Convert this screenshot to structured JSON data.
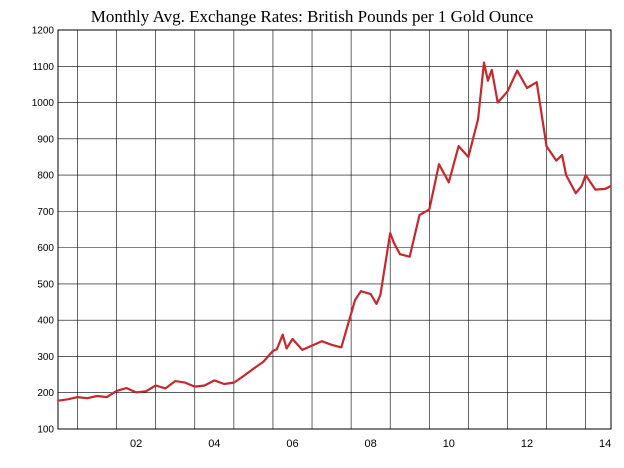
{
  "chart_data": {
    "type": "line",
    "title": "Monthly Avg. Exchange Rates: British Pounds per 1 Gold Ounce",
    "xlabel": "",
    "ylabel": "",
    "ylim": [
      100,
      1200
    ],
    "yticks": [
      100,
      200,
      300,
      400,
      500,
      600,
      700,
      800,
      900,
      1000,
      1100,
      1200
    ],
    "xlim": [
      2000.5,
      2014.65
    ],
    "xticks": [
      {
        "label": "02",
        "x": 2002.0
      },
      {
        "label": "04",
        "x": 2004.0
      },
      {
        "label": "06",
        "x": 2006.0
      },
      {
        "label": "08",
        "x": 2008.0
      },
      {
        "label": "10",
        "x": 2010.0
      },
      {
        "label": "12",
        "x": 2012.0
      },
      {
        "label": "14",
        "x": 2014.0
      }
    ],
    "grid": true,
    "line_color": "#c8282d",
    "series": [
      {
        "name": "",
        "x": [
          2000.5,
          2000.75,
          2001.0,
          2001.25,
          2001.5,
          2001.75,
          2002.0,
          2002.25,
          2002.5,
          2002.75,
          2003.0,
          2003.25,
          2003.5,
          2003.75,
          2004.0,
          2004.25,
          2004.5,
          2004.75,
          2005.0,
          2005.25,
          2005.5,
          2005.75,
          2006.0,
          2006.1,
          2006.25,
          2006.35,
          2006.5,
          2006.75,
          2007.0,
          2007.25,
          2007.5,
          2007.75,
          2008.0,
          2008.1,
          2008.25,
          2008.5,
          2008.65,
          2008.75,
          2009.0,
          2009.1,
          2009.25,
          2009.5,
          2009.75,
          2010.0,
          2010.1,
          2010.25,
          2010.5,
          2010.75,
          2011.0,
          2011.25,
          2011.4,
          2011.5,
          2011.6,
          2011.75,
          2012.0,
          2012.25,
          2012.5,
          2012.75,
          2013.0,
          2013.25,
          2013.4,
          2013.5,
          2013.75,
          2013.9,
          2014.0,
          2014.25,
          2014.5,
          2014.65
        ],
        "values": [
          178,
          182,
          188,
          185,
          191,
          188,
          205,
          213,
          201,
          204,
          220,
          212,
          232,
          228,
          217,
          220,
          234,
          224,
          228,
          246,
          266,
          285,
          315,
          320,
          360,
          322,
          348,
          318,
          330,
          342,
          332,
          325,
          418,
          455,
          480,
          472,
          445,
          470,
          640,
          612,
          582,
          575,
          690,
          705,
          755,
          830,
          780,
          880,
          850,
          955,
          1110,
          1060,
          1090,
          1000,
          1030,
          1088,
          1040,
          1056,
          880,
          840,
          855,
          800,
          750,
          770,
          800,
          760,
          762,
          770
        ]
      }
    ]
  }
}
